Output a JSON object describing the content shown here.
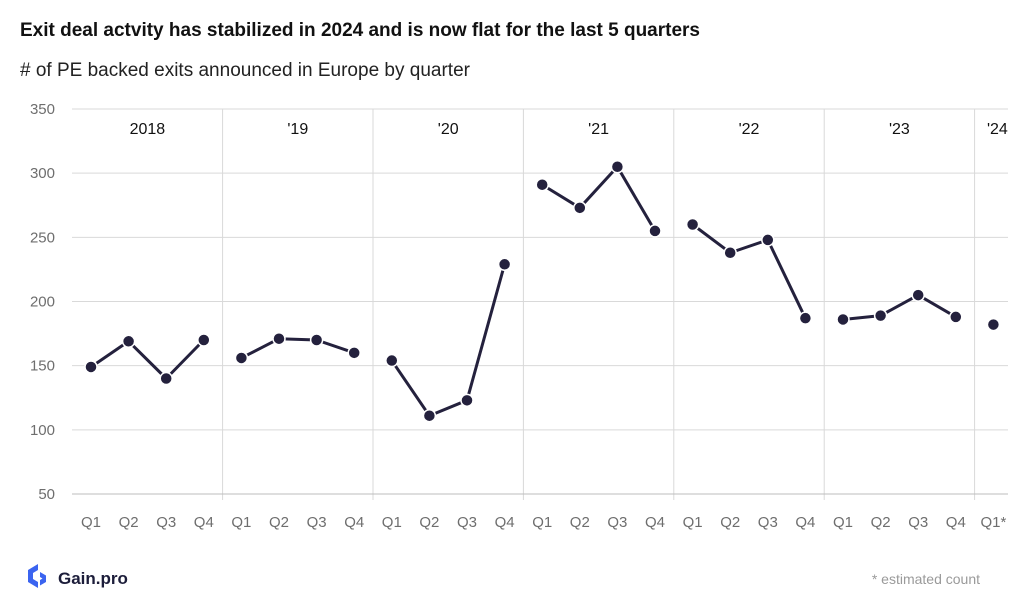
{
  "title": "Exit deal actvity has stabilized in 2024 and is now flat for the last 5 quarters",
  "subtitle": "# of PE backed exits announced in Europe by quarter",
  "brand": {
    "name": "Gain.pro",
    "logo_icon": "gain-pro-logo-icon"
  },
  "footnote": "* estimated count",
  "colors": {
    "line": "#24213d",
    "grid": "#d9d9d9",
    "axis": "#bdbdbd"
  },
  "chart_data": {
    "type": "line",
    "title": "Exit deal actvity has stabilized in 2024 and is now flat for the last 5 quarters",
    "subtitle": "# of PE backed exits announced in Europe by quarter",
    "ylim": [
      50,
      350
    ],
    "yticks": [
      50,
      100,
      150,
      200,
      250,
      300,
      350
    ],
    "grid": true,
    "groups": [
      {
        "label": "2018",
        "quarters": [
          "Q1",
          "Q2",
          "Q3",
          "Q4"
        ],
        "values": [
          149,
          169,
          140,
          170
        ]
      },
      {
        "label": "'19",
        "quarters": [
          "Q1",
          "Q2",
          "Q3",
          "Q4"
        ],
        "values": [
          156,
          171,
          170,
          160
        ]
      },
      {
        "label": "'20",
        "quarters": [
          "Q1",
          "Q2",
          "Q3",
          "Q4"
        ],
        "values": [
          154,
          111,
          123,
          229
        ]
      },
      {
        "label": "'21",
        "quarters": [
          "Q1",
          "Q2",
          "Q3",
          "Q4"
        ],
        "values": [
          291,
          273,
          305,
          255
        ]
      },
      {
        "label": "'22",
        "quarters": [
          "Q1",
          "Q2",
          "Q3",
          "Q4"
        ],
        "values": [
          260,
          238,
          248,
          187
        ]
      },
      {
        "label": "'23",
        "quarters": [
          "Q1",
          "Q2",
          "Q3",
          "Q4"
        ],
        "values": [
          186,
          189,
          205,
          188
        ]
      },
      {
        "label": "'24",
        "quarters": [
          "Q1*"
        ],
        "values": [
          182
        ]
      }
    ]
  }
}
